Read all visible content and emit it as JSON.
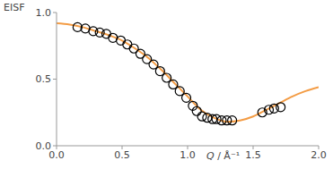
{
  "chart_data": {
    "type": "scatter",
    "x_label": "Q / Å⁻¹",
    "y_label": "EISF",
    "xlim": [
      0,
      2
    ],
    "ylim": [
      0,
      1
    ],
    "xticks": [
      {
        "value": 0,
        "label": "0.0"
      },
      0.5,
      {
        "value": 1,
        "label": "1.0"
      },
      1.5,
      {
        "value": 2,
        "label": "2.0"
      }
    ],
    "yticks": [
      {
        "value": 0,
        "label": "0.0"
      },
      0.5,
      {
        "value": 1,
        "label": "1.0"
      }
    ],
    "grid": false,
    "series": [
      {
        "type": "scatter",
        "marker": "circle",
        "color": "#000000",
        "x": [
          0.16,
          0.22,
          0.28,
          0.33,
          0.38,
          0.43,
          0.49,
          0.54,
          0.59,
          0.64,
          0.69,
          0.74,
          0.79,
          0.84,
          0.89,
          0.94,
          0.99,
          1.04,
          1.07,
          1.11,
          1.15,
          1.19,
          1.22,
          1.26,
          1.3,
          1.34,
          1.57,
          1.62,
          1.66,
          1.71
        ],
        "values": [
          0.89,
          0.88,
          0.86,
          0.85,
          0.84,
          0.81,
          0.79,
          0.76,
          0.73,
          0.69,
          0.65,
          0.61,
          0.56,
          0.51,
          0.46,
          0.41,
          0.36,
          0.3,
          0.26,
          0.22,
          0.21,
          0.2,
          0.2,
          0.19,
          0.19,
          0.19,
          0.25,
          0.27,
          0.28,
          0.29
        ]
      },
      {
        "type": "line",
        "color": "#f39c45",
        "x": [
          0,
          0.1,
          0.2,
          0.3,
          0.4,
          0.5,
          0.6,
          0.7,
          0.8,
          0.9,
          1.0,
          1.1,
          1.2,
          1.3,
          1.4,
          1.5,
          1.6,
          1.7,
          1.8,
          1.9,
          2.0
        ],
        "values": [
          0.92,
          0.91,
          0.89,
          0.86,
          0.83,
          0.79,
          0.73,
          0.66,
          0.57,
          0.47,
          0.37,
          0.27,
          0.21,
          0.18,
          0.19,
          0.22,
          0.27,
          0.32,
          0.37,
          0.41,
          0.44
        ]
      }
    ]
  }
}
